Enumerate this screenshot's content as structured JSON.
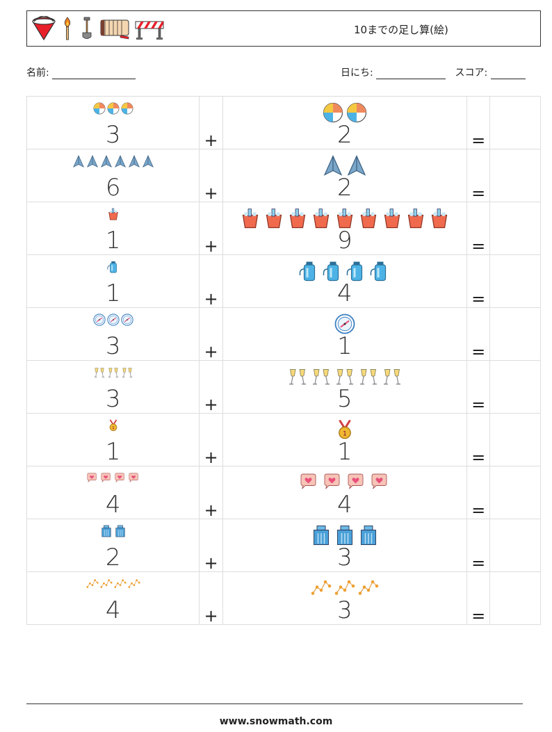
{
  "header": {
    "title": "10までの足し算(絵)",
    "icons": [
      "fire-bucket-icon",
      "match-icon",
      "shovel-icon",
      "fire-hose-icon",
      "road-barrier-icon"
    ]
  },
  "form": {
    "name_label": "名前:",
    "date_label": "日にち:",
    "score_label": "スコア:"
  },
  "operators": {
    "plus": "+",
    "equals": "="
  },
  "problems": [
    {
      "a": "3",
      "b": "2",
      "icon": "beach-ball-icon",
      "color": "#f08a5d"
    },
    {
      "a": "6",
      "b": "2",
      "icon": "paper-plane-icon",
      "color": "#5b8db8"
    },
    {
      "a": "1",
      "b": "9",
      "icon": "ice-bucket-icon",
      "color": "#f06a4e"
    },
    {
      "a": "1",
      "b": "4",
      "icon": "thermos-icon",
      "color": "#4db3e6"
    },
    {
      "a": "3",
      "b": "1",
      "icon": "compass-icon",
      "color": "#3a7fc1"
    },
    {
      "a": "3",
      "b": "5",
      "icon": "champagne-toast-icon",
      "color": "#f0b840"
    },
    {
      "a": "1",
      "b": "1",
      "icon": "medal-icon",
      "color": "#e0a020"
    },
    {
      "a": "4",
      "b": "4",
      "icon": "love-chat-icon",
      "color": "#e8507a"
    },
    {
      "a": "2",
      "b": "3",
      "icon": "office-building-icon",
      "color": "#4aa0d8"
    },
    {
      "a": "4",
      "b": "3",
      "icon": "constellation-icon",
      "color": "#f0a030"
    }
  ],
  "footer": {
    "url": "www.snowmath.com"
  }
}
